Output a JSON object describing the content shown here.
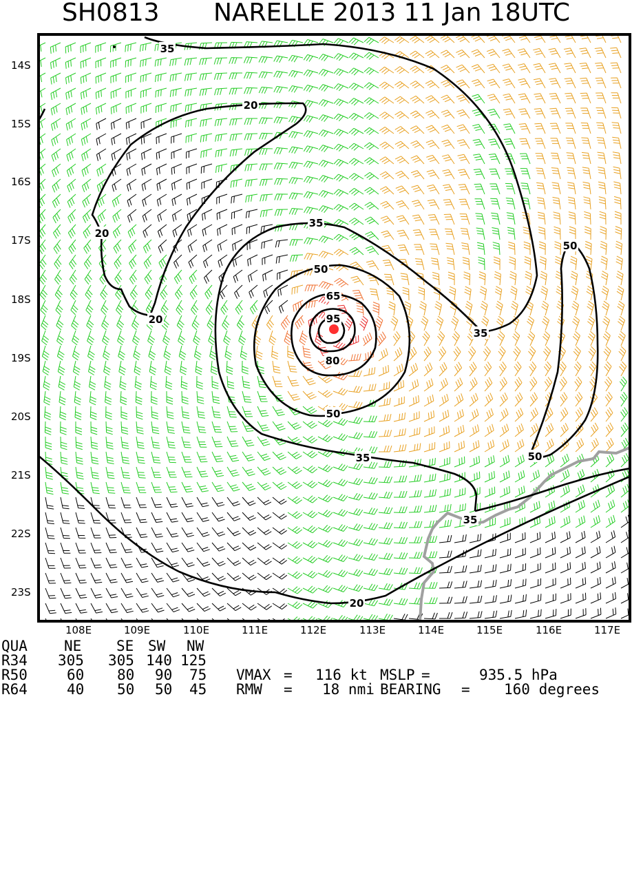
{
  "title": {
    "storm_id": "SH0813",
    "storm_label": "NARELLE 2013 11 Jan 18UTC"
  },
  "map": {
    "lat_labels": [
      "14S",
      "15S",
      "16S",
      "17S",
      "18S",
      "19S",
      "20S",
      "21S",
      "22S",
      "23S"
    ],
    "lon_labels": [
      "108E",
      "109E",
      "110E",
      "111E",
      "112E",
      "113E",
      "114E",
      "115E",
      "116E",
      "117E"
    ],
    "contour_labels": [
      "35",
      "20",
      "20",
      "20",
      "35",
      "50",
      "65",
      "95",
      "80",
      "50",
      "35",
      "50",
      "50",
      "35",
      "35",
      "20"
    ],
    "barb_colors": {
      "lt35": "#000000",
      "kt35_50": "#22cc22",
      "kt50_65": "#e8a020",
      "kt65_80": "#f07030",
      "ge80": "#e82828"
    },
    "coast_color": "#a0a0a0",
    "center_marker_color": "#ff3030"
  },
  "table": {
    "headers": [
      "QUA",
      "NE",
      "SE",
      "SW",
      "NW"
    ],
    "rows": [
      {
        "label": "R34",
        "ne": "305",
        "se": "305",
        "sw": "140",
        "nw": "125"
      },
      {
        "label": "R50",
        "ne": "60",
        "se": "80",
        "sw": "90",
        "nw": "75"
      },
      {
        "label": "R64",
        "ne": "40",
        "se": "50",
        "sw": "50",
        "nw": "45"
      }
    ]
  },
  "stats": {
    "vmax_label": "VMAX",
    "vmax_value": "116 kt",
    "mslp_label": "MSLP",
    "mslp_value": "935.5 hPa",
    "rmw_label": "RMW",
    "rmw_value": "18 nmi",
    "bearing_label": "BEARING",
    "bearing_value": "160 degrees"
  }
}
